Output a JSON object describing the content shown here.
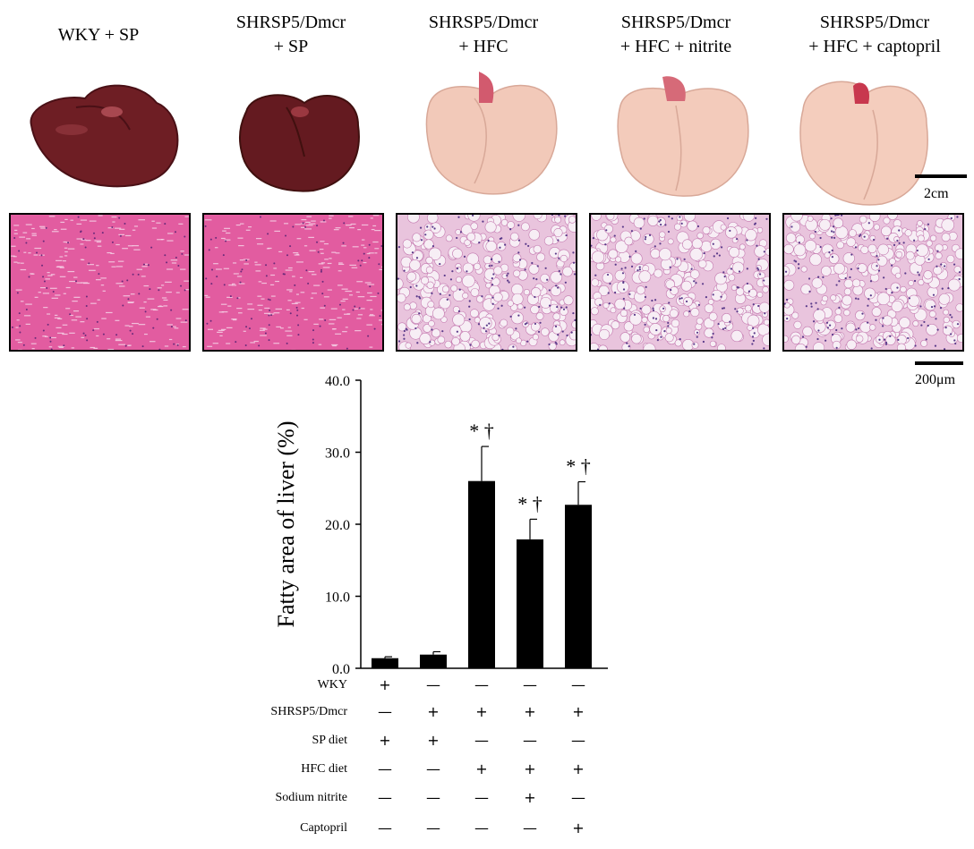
{
  "groups": [
    {
      "label_line1": "WKY + SP",
      "label_line2": "",
      "liver_color": "#6e1e24",
      "histo_style": "normal"
    },
    {
      "label_line1": "SHRSP5/Dmcr",
      "label_line2": "+ SP",
      "liver_color": "#641a20",
      "histo_style": "normal"
    },
    {
      "label_line1": "SHRSP5/Dmcr",
      "label_line2": "+ HFC",
      "liver_color": "#f2c9b9",
      "histo_style": "fatty"
    },
    {
      "label_line1": "SHRSP5/Dmcr",
      "label_line2": "+ HFC + nitrite",
      "liver_color": "#f3cbbb",
      "histo_style": "fatty"
    },
    {
      "label_line1": "SHRSP5/Dmcr",
      "label_line2": "+ HFC + captopril",
      "liver_color": "#f4cdbd",
      "histo_style": "fatty"
    }
  ],
  "scale_bars": {
    "liver": "2cm",
    "histology": "200μm"
  },
  "chart_data": {
    "type": "bar",
    "title": "",
    "ylabel": "Fatty area of liver (%)",
    "xlabel": "",
    "ylim": [
      0,
      40
    ],
    "yticks": [
      "0.0",
      "10.0",
      "20.0",
      "30.0",
      "40.0"
    ],
    "categories": [
      "WKY + SP",
      "SHRSP5/Dmcr + SP",
      "SHRSP5/Dmcr + HFC",
      "SHRSP5/Dmcr + HFC + nitrite",
      "SHRSP5/Dmcr + HFC + captopril"
    ],
    "values": [
      1.4,
      1.9,
      26.0,
      17.9,
      22.7
    ],
    "errors": [
      0.2,
      0.4,
      4.8,
      2.8,
      3.2
    ],
    "annotations": [
      "",
      "",
      "* †",
      "* †",
      "* †"
    ],
    "bar_color": "#000000"
  },
  "treatment_table": {
    "rows": [
      {
        "label": "WKY",
        "marks": [
          "+",
          "—",
          "—",
          "—",
          "—"
        ]
      },
      {
        "label": "SHRSP5/Dmcr",
        "marks": [
          "—",
          "+",
          "+",
          "+",
          "+"
        ]
      },
      {
        "label": "SP diet",
        "marks": [
          "+",
          "+",
          "—",
          "—",
          "—"
        ]
      },
      {
        "label": "HFC  diet",
        "marks": [
          "—",
          "—",
          "+",
          "+",
          "+"
        ]
      },
      {
        "label": "Sodium nitrite",
        "marks": [
          "—",
          "—",
          "—",
          "+",
          "—"
        ]
      },
      {
        "label": "Captopril",
        "marks": [
          "—",
          "—",
          "—",
          "—",
          "+"
        ]
      }
    ]
  }
}
